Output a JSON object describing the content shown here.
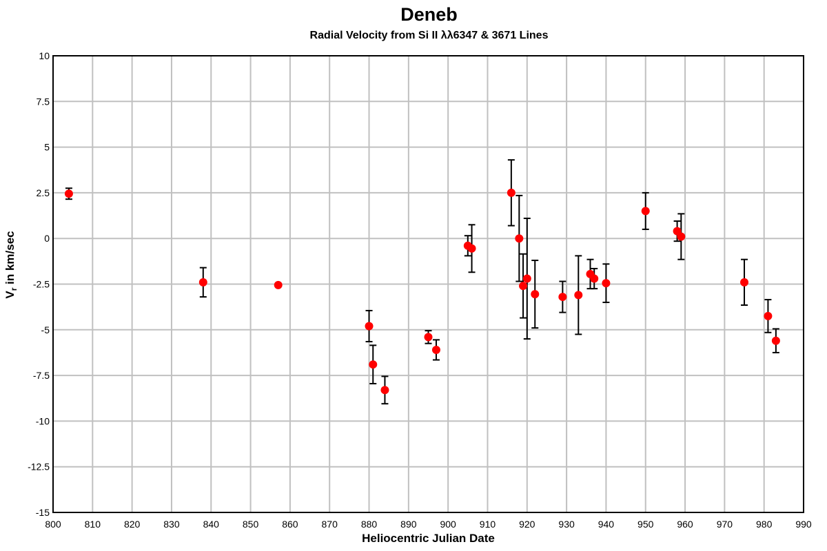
{
  "chart_data": {
    "type": "scatter",
    "title": "Deneb",
    "subtitle": "Radial Velocity from Si II λλ6347 & 3671 Lines",
    "xlabel": "Heliocentric Julian Date",
    "ylabel_main": "V",
    "ylabel_sub": "r",
    "ylabel_rest": " in km/sec",
    "xlim": [
      800,
      990
    ],
    "ylim": [
      -15,
      10
    ],
    "x_ticks": [
      800,
      810,
      820,
      830,
      840,
      850,
      860,
      870,
      880,
      890,
      900,
      910,
      920,
      930,
      940,
      950,
      960,
      970,
      980,
      990
    ],
    "y_ticks": [
      10,
      7.5,
      5,
      2.5,
      0,
      -2.5,
      -5,
      -7.5,
      -10,
      -12.5,
      -15
    ],
    "y_tick_labels": [
      "10",
      "7.5",
      "5",
      "2.5",
      "0",
      "-2.5",
      "-5",
      "-7.5",
      "-10",
      "-12.5",
      "-15"
    ],
    "grid": true,
    "marker_color": "#ff0000",
    "errorbar_color": "#000000",
    "grid_color": "#c0c0c0",
    "points": [
      {
        "x": 804.0,
        "y": 2.45,
        "err": 0.3
      },
      {
        "x": 838.0,
        "y": -2.4,
        "err": 0.8
      },
      {
        "x": 857.0,
        "y": -2.55,
        "err": 0
      },
      {
        "x": 880.0,
        "y": -4.8,
        "err": 0.85
      },
      {
        "x": 881.0,
        "y": -6.9,
        "err": 1.05
      },
      {
        "x": 884.0,
        "y": -8.3,
        "err": 0.75
      },
      {
        "x": 895.0,
        "y": -5.4,
        "err": 0.35
      },
      {
        "x": 897.0,
        "y": -6.1,
        "err": 0.55
      },
      {
        "x": 905.0,
        "y": -0.4,
        "err": 0.55
      },
      {
        "x": 906.0,
        "y": -0.55,
        "err": 1.3
      },
      {
        "x": 916.0,
        "y": 2.5,
        "err": 1.8
      },
      {
        "x": 918.0,
        "y": 0.0,
        "err": 2.35
      },
      {
        "x": 919.0,
        "y": -2.6,
        "err": 1.75
      },
      {
        "x": 920.0,
        "y": -2.2,
        "err": 3.3
      },
      {
        "x": 922.0,
        "y": -3.05,
        "err": 1.85
      },
      {
        "x": 929.0,
        "y": -3.2,
        "err": 0.85
      },
      {
        "x": 933.0,
        "y": -3.1,
        "err": 2.15
      },
      {
        "x": 936.0,
        "y": -1.95,
        "err": 0.8
      },
      {
        "x": 937.0,
        "y": -2.2,
        "err": 0.55
      },
      {
        "x": 940.0,
        "y": -2.45,
        "err": 1.05
      },
      {
        "x": 950.0,
        "y": 1.5,
        "err": 1.0
      },
      {
        "x": 958.0,
        "y": 0.4,
        "err": 0.55
      },
      {
        "x": 959.0,
        "y": 0.1,
        "err": 1.25
      },
      {
        "x": 975.0,
        "y": -2.4,
        "err": 1.25
      },
      {
        "x": 981.0,
        "y": -4.25,
        "err": 0.9
      },
      {
        "x": 983.0,
        "y": -5.6,
        "err": 0.65
      }
    ]
  }
}
